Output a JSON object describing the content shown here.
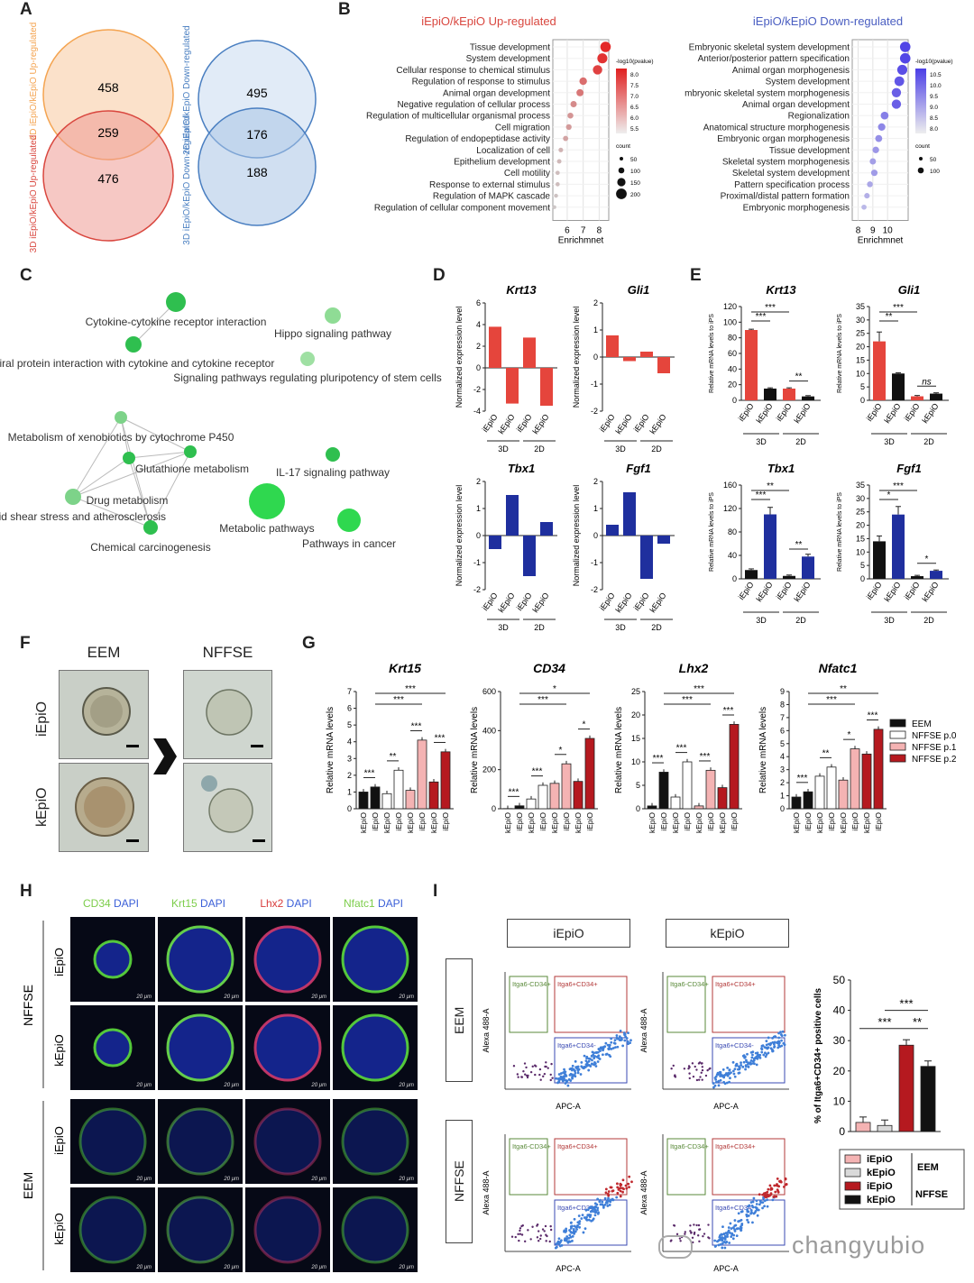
{
  "watermark": "changyubio",
  "panel_labels": {
    "A": "A",
    "B": "B",
    "C": "C",
    "D": "D",
    "E": "E",
    "F": "F",
    "G": "G",
    "H": "H",
    "I": "I"
  },
  "panelA": {
    "venn_left": {
      "top_label": "2D iEpiO/kEpiO Up-regulated",
      "bottom_label": "3D iEpiO/kEpiO Up-regulated",
      "only_top": "458",
      "overlap": "259",
      "only_bottom": "476",
      "top_color": "#f4a451",
      "bottom_color": "#d9473f"
    },
    "venn_right": {
      "top_label": "2D iEpiO/kEpiO Down-regulated",
      "bottom_label": "3D iEpiO/kEpiO Down-regulated",
      "only_top": "495",
      "overlap": "176",
      "only_bottom": "188",
      "color": "#4a7fc1"
    }
  },
  "panelB": {
    "up": {
      "title": "iEpiO/kEpiO Up-regulated",
      "terms": [
        "Tissue development",
        "System development",
        "Cellular response to chemical stimulus",
        "Regulation of response to stimulus",
        "Animal organ development",
        "Negative regulation of cellular process",
        "Regulation of multicellular organismal process",
        "Cell migration",
        "Regulation of endopeptidase activity",
        "Localization of cell",
        "Epithelium development",
        "Cell motility",
        "Response to external stimulus",
        "Regulation of MAPK cascade",
        "Regulation of cellular component movement"
      ],
      "enrichment": [
        8.4,
        8.2,
        7.9,
        7.0,
        6.8,
        6.4,
        6.2,
        6.1,
        5.9,
        5.6,
        5.5,
        5.4,
        5.4,
        5.3,
        5.2
      ],
      "x_ticks": [
        "6",
        "7",
        "8"
      ],
      "xlabel": "Enrichmnet",
      "legend_color_title": "-log10(pvalue)",
      "legend_color_ticks": [
        "8.0",
        "7.5",
        "7.0",
        "6.5",
        "6.0",
        "5.5"
      ],
      "legend_size_title": "count",
      "legend_size_ticks": [
        "50",
        "100",
        "150",
        "200"
      ]
    },
    "down": {
      "title": "iEpiO/kEpiO Down-regulated",
      "terms": [
        "Embryonic skeletal system development",
        "Anterior/posterior pattern specification",
        "Animal organ morphogenesis",
        "System development",
        "mbryonic skeletal system morphogenesis",
        "Animal organ development",
        "Regionalization",
        "Anatomical structure morphogenesis",
        "Embryonic organ morphogenesis",
        "Tissue development",
        "Skeletal system morphogenesis",
        "Skeletal system development",
        "Pattern specification process",
        "Proximal/distal pattern formation",
        "Embryonic morphogenesis"
      ],
      "enrichment": [
        11.2,
        11.2,
        11.0,
        10.8,
        10.6,
        10.6,
        9.8,
        9.6,
        9.4,
        9.2,
        9.0,
        9.1,
        8.8,
        8.6,
        8.4
      ],
      "x_ticks": [
        "8",
        "9",
        "10"
      ],
      "xlabel": "Enrichmnet",
      "legend_color_title": "-log10(pvalue)",
      "legend_color_ticks": [
        "10.5",
        "10.0",
        "9.5",
        "9.0",
        "8.5",
        "8.0"
      ],
      "legend_size_title": "count",
      "legend_size_ticks": [
        "50",
        "100"
      ]
    }
  },
  "panelC": {
    "nodes": [
      "Cytokine-cytokine receptor interaction",
      "Viral protein interaction with cytokine and cytokine receptor",
      "Hippo signaling pathway",
      "Signaling pathways regulating pluripotency of stem cells",
      "Metabolism of xenobiotics by cytochrome P450",
      "Glutathione metabolism",
      "IL-17 signaling pathway",
      "Drug metabolism",
      "Fluid shear stress and atherosclerosis",
      "Metabolic pathways",
      "Pathways in cancer",
      "Chemical carcinogenesis"
    ]
  },
  "panelD": {
    "ylabel": "Normalized expression level",
    "group_labels": [
      "3D",
      "2D"
    ],
    "bar_labels": [
      "iEpiO",
      "kEpiO",
      "iEpiO",
      "kEpiO"
    ],
    "charts": [
      {
        "title": "Krt13",
        "values": [
          3.8,
          -3.3,
          2.8,
          -3.5
        ],
        "ylim": [
          -4,
          6
        ],
        "ticks": [
          "6",
          "4",
          "2",
          "0",
          "-2",
          "-4"
        ],
        "color": "#e5453c"
      },
      {
        "title": "Gli1",
        "values": [
          0.8,
          -0.15,
          0.2,
          -0.6
        ],
        "ylim": [
          -2,
          2
        ],
        "ticks": [
          "2",
          "1",
          "0",
          "-1",
          "-2"
        ],
        "color": "#e5453c"
      },
      {
        "title": "Tbx1",
        "values": [
          -0.5,
          1.5,
          -1.5,
          0.5
        ],
        "ylim": [
          -2,
          2
        ],
        "ticks": [
          "2",
          "1",
          "0",
          "-1",
          "-2"
        ],
        "color": "#1f2f9e"
      },
      {
        "title": "Fgf1",
        "values": [
          0.4,
          1.6,
          -1.6,
          -0.3
        ],
        "ylim": [
          -2,
          2
        ],
        "ticks": [
          "2",
          "1",
          "0",
          "-1",
          "-2"
        ],
        "color": "#1f2f9e"
      }
    ]
  },
  "panelE": {
    "ylabel": "Relative mRNA levels to iPS",
    "group_labels": [
      "3D",
      "2D"
    ],
    "bar_labels": [
      "iEpiO",
      "kEpiO",
      "iEpiO",
      "kEpiO"
    ],
    "charts": [
      {
        "title": "Krt13",
        "values": [
          90,
          15,
          15,
          5
        ],
        "errors": [
          1,
          1,
          1,
          1
        ],
        "ymax": 120,
        "ticks": [
          "120",
          "100",
          "80",
          "60",
          "40",
          "20",
          "0"
        ],
        "colors": [
          "#e5453c",
          "#111111",
          "#e5453c",
          "#111111"
        ],
        "sig": [
          "***",
          "***",
          "**"
        ]
      },
      {
        "title": "Gli1",
        "values": [
          22,
          10,
          1.5,
          2.5
        ],
        "errors": [
          3.5,
          0.3,
          0.3,
          0.3
        ],
        "ymax": 35,
        "ticks": [
          "35",
          "30",
          "25",
          "20",
          "15",
          "10",
          "5",
          "0"
        ],
        "colors": [
          "#e5453c",
          "#111111",
          "#e5453c",
          "#111111"
        ],
        "sig": [
          "***",
          "**",
          "ns"
        ]
      },
      {
        "title": "Tbx1",
        "values": [
          15,
          110,
          5,
          38
        ],
        "errors": [
          2,
          12,
          1.5,
          4
        ],
        "ymax": 160,
        "ticks": [
          "160",
          "120",
          "80",
          "40",
          "0"
        ],
        "colors": [
          "#111111",
          "#1f2f9e",
          "#111111",
          "#1f2f9e"
        ],
        "sig": [
          "**",
          "***",
          "**"
        ]
      },
      {
        "title": "Fgf1",
        "values": [
          14,
          24,
          1,
          3
        ],
        "errors": [
          2,
          3,
          0.3,
          0.3
        ],
        "ymax": 35,
        "ticks": [
          "35",
          "30",
          "25",
          "20",
          "15",
          "10",
          "5",
          "0"
        ],
        "colors": [
          "#111111",
          "#1f2f9e",
          "#111111",
          "#1f2f9e"
        ],
        "sig": [
          "***",
          "*",
          "*"
        ]
      }
    ]
  },
  "panelF": {
    "cols": [
      "EEM",
      "NFFSE"
    ],
    "rows": [
      "iEpiO",
      "kEpiO"
    ]
  },
  "panelG": {
    "ylabel": "Relative mRNA levels",
    "bar_labels": [
      "kEpiO",
      "iEpiO",
      "kEpiO",
      "iEpiO",
      "kEpiO",
      "iEpiO",
      "kEpiO",
      "iEpiO"
    ],
    "colors": [
      "#111111",
      "#111111",
      "#ffffff",
      "#ffffff",
      "#f4b3b3",
      "#f4b3b3",
      "#b5191f",
      "#b5191f"
    ],
    "legend": [
      {
        "label": "EEM",
        "color": "#111111"
      },
      {
        "label": "NFFSE p.0",
        "color": "#ffffff"
      },
      {
        "label": "NFFSE p.1",
        "color": "#f4b3b3"
      },
      {
        "label": "NFFSE p.2",
        "color": "#b5191f"
      }
    ],
    "charts": [
      {
        "title": "Krt15",
        "values": [
          1.0,
          1.3,
          0.9,
          2.3,
          1.1,
          4.1,
          1.6,
          3.4
        ],
        "ymax": 7,
        "ticks": [
          "7",
          "6",
          "5",
          "4",
          "3",
          "2",
          "1",
          "0"
        ],
        "sig": [
          "***",
          "**",
          "***",
          "***",
          "***",
          "***"
        ]
      },
      {
        "title": "CD34",
        "values": [
          1,
          15,
          50,
          120,
          130,
          230,
          140,
          360
        ],
        "ymax": 600,
        "ticks": [
          "600",
          "400",
          "200",
          "0"
        ],
        "sig": [
          "***",
          "***",
          "*",
          "*",
          "***",
          "*"
        ]
      },
      {
        "title": "Lhx2",
        "values": [
          0.6,
          7.8,
          2.5,
          10,
          0.6,
          8.2,
          4.5,
          18
        ],
        "ymax": 25,
        "ticks": [
          "25",
          "20",
          "15",
          "10",
          "5",
          "0"
        ],
        "sig": [
          "***",
          "***",
          "***",
          "***",
          "***",
          "***"
        ]
      },
      {
        "title": "Nfatc1",
        "values": [
          0.9,
          1.3,
          2.5,
          3.2,
          2.2,
          4.6,
          4.2,
          6.1
        ],
        "ymax": 9,
        "ticks": [
          "9",
          "8",
          "7",
          "6",
          "5",
          "4",
          "3",
          "2",
          "1",
          "0"
        ],
        "sig": [
          "***",
          "**",
          "*",
          "***",
          "***",
          "**"
        ]
      }
    ]
  },
  "panelH": {
    "headers": [
      {
        "a": "CD34",
        "b": "DAPI",
        "ca": "#7ccd4a"
      },
      {
        "a": "Krt15",
        "b": "DAPI",
        "ca": "#7ccd4a"
      },
      {
        "a": "Lhx2",
        "b": "DAPI",
        "ca": "#d83b3b"
      },
      {
        "a": "Nfatc1",
        "b": "DAPI",
        "ca": "#7ccd4a"
      }
    ],
    "groups": [
      "NFFSE",
      "EEM"
    ],
    "rows": [
      "iEpiO",
      "kEpiO",
      "iEpiO",
      "kEpiO"
    ],
    "scale": "20 μm"
  },
  "panelI": {
    "cols": [
      "iEpiO",
      "kEpiO"
    ],
    "rows": [
      "EEM",
      "NFFSE"
    ],
    "gate_labels": [
      "Itga6-CD34+",
      "Itga6+CD34+",
      "Itga6+CD34-"
    ],
    "xlabel": "APC-A",
    "ylabel": "Alexa 488-A",
    "bar_ylabel": "% of Itga6+CD34+ positive cells",
    "bar_values": [
      3,
      2,
      28.5,
      21.5
    ],
    "bar_ymax": 50,
    "bar_ticks": [
      "50",
      "40",
      "30",
      "20",
      "10",
      "0"
    ],
    "bar_colors": [
      "#f4b3b3",
      "#d9d9d9",
      "#b5191f",
      "#111111"
    ],
    "bar_sig": [
      "***",
      "***",
      "**"
    ],
    "legend": [
      {
        "label": "iEpiO",
        "color": "#f4b3b3"
      },
      {
        "label": "kEpiO",
        "color": "#d9d9d9"
      },
      {
        "label": "iEpiO",
        "color": "#b5191f"
      },
      {
        "label": "kEpiO",
        "color": "#111111"
      }
    ],
    "legend_groups": [
      "EEM",
      "NFFSE"
    ]
  }
}
